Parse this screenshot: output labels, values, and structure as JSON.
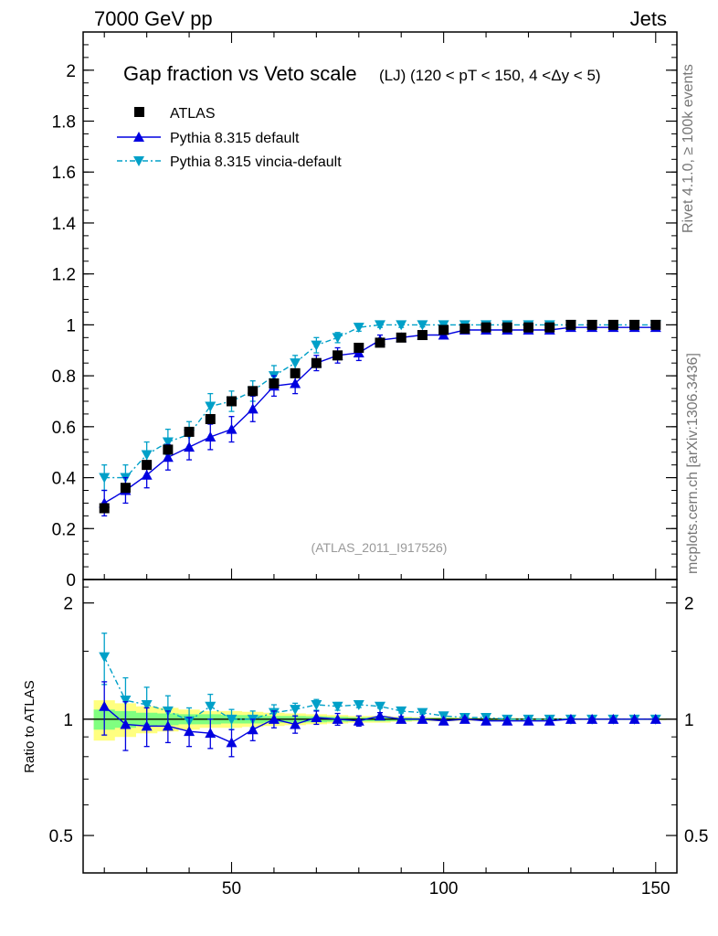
{
  "header": {
    "left": "7000 GeV pp",
    "right": "Jets"
  },
  "side": {
    "rivet": "Rivet 4.1.0, ≥ 100k events",
    "mcplots": "mcplots.cern.ch [arXiv:1306.3436]"
  },
  "colors": {
    "data": "#000000",
    "default": "#0000e0",
    "vincia": "#00a0c8",
    "band_inner": "#80ff80",
    "band_outer": "#ffff80"
  },
  "chart_data": [
    {
      "type": "scatter",
      "title": "Gap fraction vs Veto scale",
      "subtitle": "(LJ) (120 < pT < 150, 4 <Δy < 5)",
      "watermark": "(ATLAS_2011_I917526)",
      "xlabel": "",
      "ylabel": "",
      "xlim": [
        15,
        155
      ],
      "ylim": [
        0,
        2.15
      ],
      "yticks": [
        0,
        0.2,
        0.4,
        0.6,
        0.8,
        1,
        1.2,
        1.4,
        1.6,
        1.8,
        2
      ],
      "ytick_labels": [
        "0",
        "0.2",
        "0.4",
        "0.6",
        "0.8",
        "1",
        "1.2",
        "1.4",
        "1.6",
        "1.8",
        "2"
      ],
      "x": [
        20,
        25,
        30,
        35,
        40,
        45,
        50,
        55,
        60,
        65,
        70,
        75,
        80,
        85,
        90,
        95,
        100,
        105,
        110,
        115,
        120,
        125,
        130,
        135,
        140,
        145,
        150
      ],
      "legend": [
        {
          "label": "ATLAS",
          "key": "data"
        },
        {
          "label": "Pythia 8.315 default",
          "key": "default"
        },
        {
          "label": "Pythia 8.315 vincia-default",
          "key": "vincia"
        }
      ],
      "series": [
        {
          "name": "ATLAS",
          "key": "data",
          "values": [
            0.28,
            0.36,
            0.45,
            0.51,
            0.58,
            0.63,
            0.7,
            0.74,
            0.77,
            0.81,
            0.85,
            0.88,
            0.91,
            0.93,
            0.95,
            0.96,
            0.98,
            0.985,
            0.99,
            0.99,
            0.99,
            0.99,
            1.0,
            1.0,
            1.0,
            1.0,
            1.0
          ],
          "errors": [
            0.015,
            0.015,
            0.015,
            0.015,
            0.015,
            0.015,
            0.015,
            0.015,
            0.015,
            0.015,
            0.015,
            0.012,
            0.012,
            0.01,
            0.01,
            0.008,
            0.008,
            0.006,
            0.006,
            0.005,
            0.005,
            0.005,
            0.004,
            0.004,
            0.004,
            0.004,
            0.004
          ]
        },
        {
          "name": "Pythia 8.315 default",
          "key": "default",
          "values": [
            0.3,
            0.35,
            0.41,
            0.48,
            0.52,
            0.56,
            0.59,
            0.67,
            0.76,
            0.77,
            0.85,
            0.88,
            0.89,
            0.94,
            0.95,
            0.96,
            0.96,
            0.98,
            0.98,
            0.98,
            0.98,
            0.98,
            0.99,
            0.99,
            0.99,
            0.99,
            0.99
          ],
          "errors": [
            0.05,
            0.05,
            0.05,
            0.05,
            0.05,
            0.05,
            0.05,
            0.05,
            0.04,
            0.04,
            0.03,
            0.03,
            0.03,
            0.02,
            0.015,
            0.015,
            0.01,
            0.01,
            0.008,
            0.008,
            0.008,
            0.006,
            0.005,
            0.005,
            0.005,
            0.004,
            0.004
          ]
        },
        {
          "name": "Pythia 8.315 vincia-default",
          "key": "vincia",
          "values": [
            0.4,
            0.4,
            0.49,
            0.54,
            0.57,
            0.68,
            0.7,
            0.74,
            0.8,
            0.85,
            0.92,
            0.95,
            0.99,
            1.0,
            1.0,
            1.0,
            1.0,
            1.0,
            1.0,
            1.0,
            1.0,
            1.0,
            1.0,
            1.0,
            1.0,
            1.0,
            1.0
          ],
          "errors": [
            0.05,
            0.05,
            0.05,
            0.05,
            0.05,
            0.05,
            0.04,
            0.04,
            0.04,
            0.03,
            0.03,
            0.02,
            0.015,
            0.01,
            0.01,
            0.008,
            0.006,
            0.005,
            0.005,
            0.004,
            0.004,
            0.004,
            0.004,
            0.003,
            0.003,
            0.003,
            0.003
          ]
        }
      ]
    },
    {
      "type": "scatter",
      "title": "",
      "xlabel": "",
      "ylabel": "Ratio to ATLAS",
      "xlim": [
        15,
        155
      ],
      "ylim": [
        0.4,
        2.3
      ],
      "ylog": true,
      "yticks": [
        0.5,
        1,
        2
      ],
      "ytick_labels": [
        "0.5",
        "1",
        "2"
      ],
      "xticks": [
        50,
        100,
        150
      ],
      "xtick_labels": [
        "50",
        "100",
        "150"
      ],
      "x": [
        20,
        25,
        30,
        35,
        40,
        45,
        50,
        55,
        60,
        65,
        70,
        75,
        80,
        85,
        90,
        95,
        100,
        105,
        110,
        115,
        120,
        125,
        130,
        135,
        140,
        145,
        150
      ],
      "band_inner": [
        0.06,
        0.05,
        0.04,
        0.035,
        0.03,
        0.03,
        0.025,
        0.025,
        0.02,
        0.02,
        0.018,
        0.015,
        0.012,
        0.012,
        0.01,
        0.008,
        0.008,
        0.006,
        0.006,
        0.005,
        0.005,
        0.005,
        0.004,
        0.004,
        0.004,
        0.004,
        0.004
      ],
      "band_outer": [
        0.12,
        0.1,
        0.08,
        0.07,
        0.06,
        0.05,
        0.05,
        0.045,
        0.04,
        0.035,
        0.03,
        0.025,
        0.02,
        0.02,
        0.015,
        0.012,
        0.012,
        0.01,
        0.008,
        0.008,
        0.007,
        0.006,
        0.006,
        0.005,
        0.005,
        0.005,
        0.005
      ],
      "series": [
        {
          "name": "Pythia 8.315 default",
          "key": "default",
          "values": [
            1.08,
            0.97,
            0.96,
            0.96,
            0.93,
            0.92,
            0.87,
            0.94,
            1.0,
            0.97,
            1.01,
            1.0,
            0.99,
            1.02,
            1.0,
            1.0,
            0.99,
            1.0,
            0.99,
            0.99,
            0.99,
            0.99,
            1.0,
            1.0,
            1.0,
            1.0,
            1.0
          ],
          "errors": [
            0.17,
            0.14,
            0.11,
            0.09,
            0.08,
            0.08,
            0.07,
            0.06,
            0.05,
            0.05,
            0.04,
            0.035,
            0.03,
            0.02,
            0.016,
            0.015,
            0.01,
            0.01,
            0.008,
            0.008,
            0.008,
            0.006,
            0.005,
            0.005,
            0.005,
            0.004,
            0.004
          ]
        },
        {
          "name": "Pythia 8.315 vincia-default",
          "key": "vincia",
          "values": [
            1.45,
            1.12,
            1.09,
            1.05,
            0.99,
            1.08,
            1.0,
            1.0,
            1.04,
            1.06,
            1.09,
            1.08,
            1.09,
            1.08,
            1.05,
            1.04,
            1.02,
            1.01,
            1.01,
            1.0,
            1.0,
            1.0,
            1.0,
            1.0,
            1.0,
            1.0,
            1.0
          ],
          "errors": [
            0.22,
            0.16,
            0.12,
            0.1,
            0.08,
            0.08,
            0.06,
            0.05,
            0.05,
            0.04,
            0.035,
            0.025,
            0.018,
            0.012,
            0.012,
            0.01,
            0.007,
            0.006,
            0.006,
            0.005,
            0.005,
            0.005,
            0.005,
            0.004,
            0.004,
            0.004,
            0.004
          ]
        }
      ]
    }
  ]
}
